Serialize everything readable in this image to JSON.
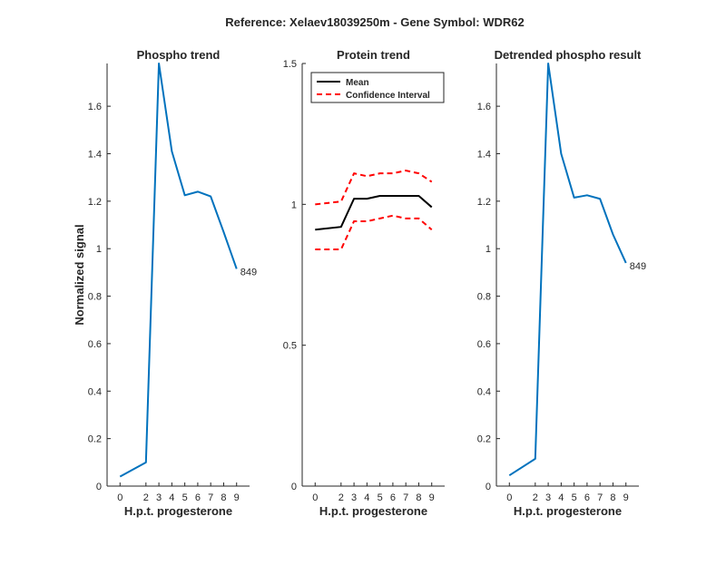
{
  "figure": {
    "suptitle": "Reference:  Xelaev18039250m - Gene Symbol:  WDR62"
  },
  "chart_data": [
    {
      "type": "line",
      "title": "Phospho trend",
      "xlabel": "H.p.t. progesterone",
      "ylabel": "Normalized signal",
      "x_ticks": [
        0,
        2,
        3,
        4,
        5,
        6,
        7,
        8,
        9
      ],
      "y_ticks": [
        0,
        0.2,
        0.4,
        0.6,
        0.8,
        1,
        1.2,
        1.4,
        1.6
      ],
      "ylim": [
        0,
        1.78
      ],
      "series": [
        {
          "color": "#0072bd",
          "values": [
            0.04,
            0.1,
            1.78,
            1.41,
            1.225,
            1.24,
            1.22,
            1.07,
            0.915
          ]
        }
      ],
      "annotation": {
        "text": "849",
        "at_index": 8
      }
    },
    {
      "type": "line",
      "title": "Protein trend",
      "xlabel": "H.p.t. progesterone",
      "ylabel": "",
      "x_ticks": [
        0,
        2,
        3,
        4,
        5,
        6,
        7,
        8,
        9
      ],
      "y_ticks": [
        0,
        0.5,
        1,
        1.5
      ],
      "ylim": [
        0,
        1.5
      ],
      "legend": {
        "placement": "top-left",
        "entries": [
          "Mean",
          "Confidence Interval"
        ]
      },
      "series": [
        {
          "name": "Mean",
          "color": "#000000",
          "style": "solid",
          "values": [
            0.91,
            0.92,
            1.02,
            1.02,
            1.03,
            1.03,
            1.03,
            1.03,
            0.99
          ]
        },
        {
          "name": "Confidence Interval",
          "color": "#ff0000",
          "style": "dashed",
          "values": [
            1.0,
            1.01,
            1.11,
            1.1,
            1.11,
            1.11,
            1.12,
            1.11,
            1.08
          ]
        },
        {
          "name": "Confidence Interval",
          "color": "#ff0000",
          "style": "dashed",
          "values": [
            0.84,
            0.84,
            0.94,
            0.94,
            0.95,
            0.96,
            0.95,
            0.95,
            0.91
          ]
        }
      ]
    },
    {
      "type": "line",
      "title": "Detrended phospho result",
      "xlabel": "H.p.t. progesterone",
      "ylabel": "",
      "x_ticks": [
        0,
        2,
        3,
        4,
        5,
        6,
        7,
        8,
        9
      ],
      "y_ticks": [
        0,
        0.2,
        0.4,
        0.6,
        0.8,
        1,
        1.2,
        1.4,
        1.6
      ],
      "ylim": [
        0,
        1.78
      ],
      "series": [
        {
          "color": "#0072bd",
          "values": [
            0.045,
            0.115,
            1.78,
            1.4,
            1.215,
            1.225,
            1.21,
            1.06,
            0.94
          ]
        }
      ],
      "annotation": {
        "text": "849",
        "at_index": 8
      }
    }
  ]
}
